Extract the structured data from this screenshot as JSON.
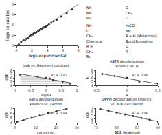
{
  "chart_data": [
    {
      "type": "diagram",
      "annotations": [
        "NH",
        "O",
        "NH",
        "CH₃",
        "H₃C",
        "O"
      ]
    },
    {
      "type": "scatter",
      "xlabel": "logk experimental",
      "ylabel": "logk calculated",
      "xlim": [
        0,
        8
      ],
      "ylim": [
        0,
        8
      ],
      "xticks": [
        0,
        2,
        4,
        6,
        8
      ],
      "yticks": [
        0,
        2,
        4,
        6,
        8
      ],
      "grid": false,
      "series": [
        {
          "type": "scatter",
          "marker": "circle",
          "color": "#222222",
          "x": [
            0.3,
            0.6,
            0.9,
            1.1,
            1.3,
            1.5,
            1.7,
            1.9,
            2.1,
            2.2,
            2.4,
            2.5,
            2.6,
            2.8,
            2.9,
            3.0,
            3.1,
            3.2,
            3.3,
            3.4,
            3.5,
            3.6,
            3.7,
            3.8,
            4.0,
            4.2,
            4.5,
            4.8,
            5.2,
            5.8,
            6.5,
            7.2
          ],
          "values": [
            0.2,
            0.7,
            1.0,
            1.0,
            1.3,
            1.5,
            1.8,
            2.0,
            2.1,
            2.3,
            2.4,
            2.5,
            2.6,
            2.8,
            2.9,
            3.0,
            3.1,
            3.2,
            3.3,
            3.4,
            3.5,
            3.5,
            3.6,
            3.7,
            3.9,
            4.1,
            4.4,
            4.7,
            5.0,
            5.6,
            6.3,
            7.0
          ]
        },
        {
          "type": "line",
          "line_style": "solid",
          "color": "#777777",
          "x": [
            0,
            8
          ],
          "values": [
            0,
            8
          ]
        }
      ]
    },
    {
      "type": "scatter",
      "title": "logk vs. Hammett constant",
      "xlabel": "sigma",
      "ylabel": "logk",
      "xlim": [
        -1,
        1
      ],
      "ylim": [
        4,
        8
      ],
      "xticks": [
        -1,
        -0.5,
        0,
        0.5,
        1
      ],
      "yticks": [
        4,
        5,
        6,
        7,
        8
      ],
      "grid": false,
      "annotations": [
        "R² = 0.97"
      ],
      "series": [
        {
          "type": "scatter",
          "marker": "circle",
          "color": "#333333",
          "x": [
            -0.83,
            -0.27,
            0.0,
            0.12,
            0.23,
            0.54,
            0.78
          ],
          "values": [
            6.8,
            6.3,
            6.0,
            5.8,
            5.5,
            5.0,
            4.5
          ]
        },
        {
          "type": "line",
          "line_style": "solid",
          "color": "#333333",
          "x": [
            -0.83,
            0.78
          ],
          "values": [
            7.0124,
            4.6941
          ]
        },
        {
          "type": "hlines",
          "line_style": "solid",
          "color": "#888888",
          "x_start": -0.83,
          "x": [
            -0.83,
            -0.27,
            0.0,
            0.12,
            0.23,
            0.54,
            0.78
          ],
          "values": [
            6.8,
            6.3,
            6.0,
            5.8,
            5.5,
            5.0,
            4.5
          ]
        }
      ]
    },
    {
      "type": "scatter",
      "title": "ABTS decolorization kinetics vs. R",
      "xlabel": "R",
      "ylabel": "k",
      "xlim": [
        -0.5,
        0.5
      ],
      "ylim": [
        4,
        8
      ],
      "xticks": [
        -0.5,
        0,
        0.5
      ],
      "yticks": [
        4,
        5,
        6,
        7,
        8
      ],
      "grid": false,
      "annotations": [
        "R² = 0.96"
      ],
      "series": [
        {
          "type": "scatter",
          "marker": "circle",
          "color": "#333333",
          "x": [
            -0.4,
            -0.2,
            0.0,
            0.2,
            0.5
          ],
          "values": [
            7.0,
            6.5,
            6.0,
            5.0,
            4.5
          ]
        },
        {
          "type": "line",
          "line_style": "solid",
          "color": "#333333",
          "x": [
            -0.4,
            0.5
          ],
          "values": [
            7.0307,
            4.3934
          ]
        }
      ]
    },
    {
      "type": "scatter",
      "title": "ABTS decolorization kinetics vs. carbon",
      "xlabel": "carbon no.",
      "ylabel": "logk",
      "xlim": [
        0,
        30
      ],
      "ylim": [
        4,
        7
      ],
      "xticks": [
        0,
        10,
        20,
        30
      ],
      "yticks": [
        4,
        5,
        6,
        7
      ],
      "grid": false,
      "annotations": [
        "R² = 0.94"
      ],
      "series": [
        {
          "type": "scatter",
          "marker": "circle",
          "color": "#333333",
          "x": [
            1,
            4,
            8,
            12,
            16,
            20,
            25
          ],
          "values": [
            4.2,
            4.5,
            5.0,
            5.5,
            6.0,
            6.4,
            6.8
          ]
        },
        {
          "type": "line",
          "line_style": "solid",
          "color": "#333333",
          "x": [
            1,
            25
          ],
          "values": [
            4.2194,
            6.9123
          ]
        }
      ]
    },
    {
      "type": "scatter",
      "title": "DPPH decolorization kinetics vs. BDE calculation",
      "xlabel": "BDE (kcal/mol)",
      "ylabel": "logk",
      "xlim": [
        75,
        90
      ],
      "ylim": [
        3,
        7
      ],
      "xticks": [
        75,
        80,
        85,
        90
      ],
      "yticks": [
        3,
        4,
        5,
        6,
        7
      ],
      "grid": false,
      "annotations": [
        "R² = 0.96"
      ],
      "series": [
        {
          "type": "scatter",
          "marker": "circle",
          "color": "#333333",
          "x": [
            76,
            78,
            80,
            82,
            84,
            86,
            88,
            90
          ],
          "values": [
            6.8,
            6.3,
            5.8,
            5.3,
            4.8,
            4.3,
            3.8,
            3.3
          ]
        },
        {
          "type": "line",
          "line_style": "solid",
          "color": "#333333",
          "x": [
            76,
            90
          ],
          "values": [
            6.8,
            3.3
          ]
        }
      ]
    },
    {
      "type": "diagram",
      "annotations": [
        "NH",
        "H₃CO",
        "O",
        "NH",
        "CH₃",
        "R = H (Melatonin)",
        "Chemical",
        "Bond Formation",
        "R =",
        "O",
        "CH₃",
        "R",
        "R₁"
      ]
    }
  ]
}
